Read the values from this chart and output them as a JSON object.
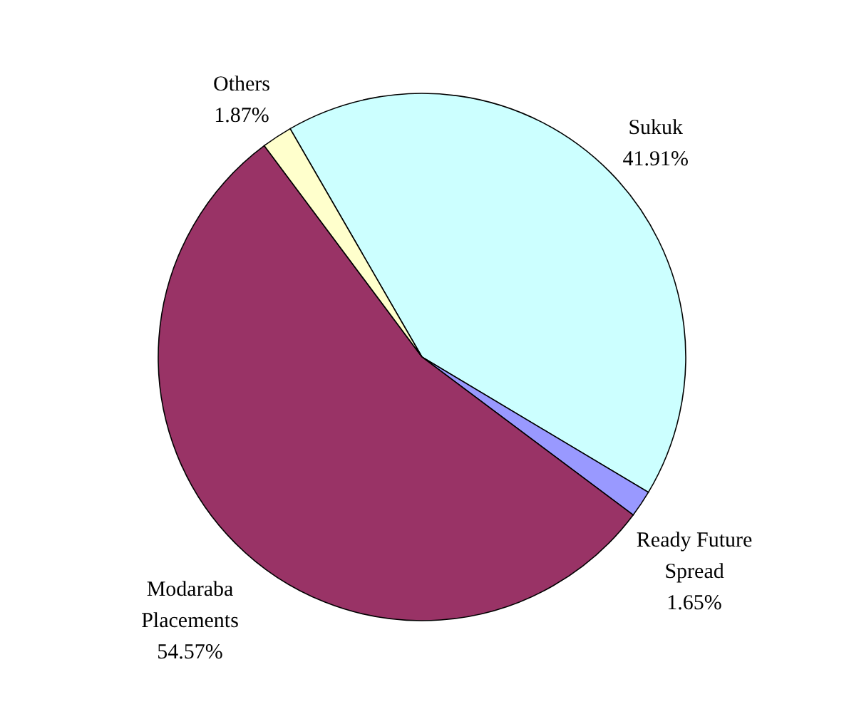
{
  "chart_data": {
    "type": "pie",
    "categories": [
      "Sukuk",
      "Ready Future Spread",
      "Modaraba Placements",
      "Others"
    ],
    "values": [
      41.91,
      1.65,
      54.57,
      1.87
    ],
    "colors": [
      "#ccffff",
      "#9999ff",
      "#993366",
      "#ffffcc"
    ],
    "value_labels": [
      "41.91%",
      "1.65%",
      "54.57%",
      "1.87%"
    ]
  }
}
